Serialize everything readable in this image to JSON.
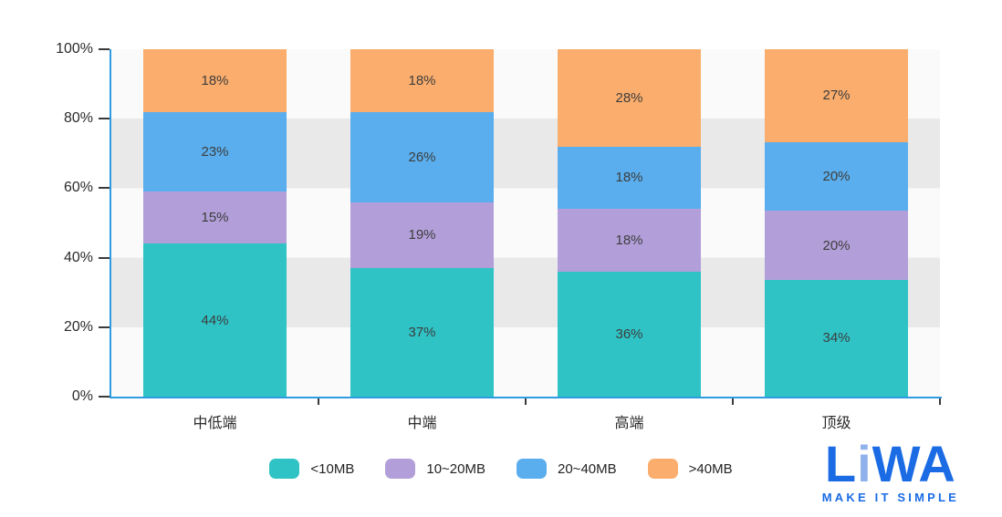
{
  "chart_data": {
    "type": "bar",
    "stacked": true,
    "percent_stack": true,
    "categories": [
      "中低端",
      "中端",
      "高端",
      "顶级"
    ],
    "series": [
      {
        "name": "<10MB",
        "color": "#2fc3c6",
        "values": [
          44,
          37,
          36,
          34
        ]
      },
      {
        "name": "10~20MB",
        "color": "#b29fd9",
        "values": [
          15,
          19,
          18,
          20
        ]
      },
      {
        "name": "20~40MB",
        "color": "#5aaeed",
        "values": [
          23,
          26,
          18,
          20
        ]
      },
      {
        "name": ">40MB",
        "color": "#faad6c",
        "values": [
          18,
          18,
          28,
          27
        ]
      }
    ],
    "value_suffix": "%",
    "y_ticks": [
      "0%",
      "20%",
      "40%",
      "60%",
      "80%",
      "100%"
    ],
    "ylim": [
      0,
      100
    ],
    "grid": "striped-bands",
    "band_colors": {
      "light": "#fafafa",
      "dark": "#e9e9e9"
    },
    "axis_color": "#2f9be0",
    "legend_position": "bottom",
    "title": ""
  },
  "branding": {
    "logo_l": "L",
    "logo_i": "i",
    "logo_wa": "WA",
    "tagline": "MAKE IT SIMPLE",
    "logo_color": "#1a6be4",
    "logo_light_color": "#8fb2ec"
  }
}
